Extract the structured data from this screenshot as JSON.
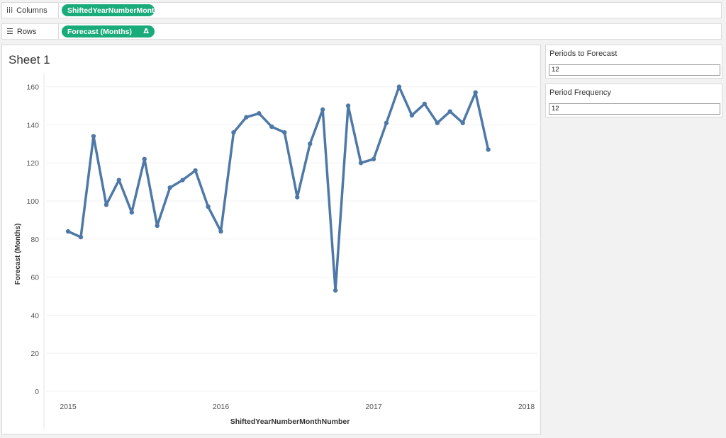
{
  "shelves": {
    "columns": {
      "label": "Columns",
      "icon": "iii",
      "pill": "ShiftedYearNumberMont..",
      "pill_color": "#1aab7a"
    },
    "rows": {
      "label": "Rows",
      "icon": "☰",
      "pill": "Forecast (Months)",
      "pill_icon": "Δ",
      "pill_color": "#1aab7a"
    }
  },
  "sheet": {
    "title": "Sheet 1"
  },
  "parameters": [
    {
      "title": "Periods to Forecast",
      "value": "12"
    },
    {
      "title": "Period Frequency",
      "value": "12"
    }
  ],
  "chart_data": {
    "type": "line",
    "xlabel": "ShiftedYearNumberMonthNumber",
    "ylabel": "Forecast (Months)",
    "ylim": [
      0,
      160
    ],
    "yticks": [
      0,
      20,
      40,
      60,
      80,
      100,
      120,
      140,
      160
    ],
    "xticks": [
      "2015",
      "2016",
      "2017",
      "2018"
    ],
    "xlim": [
      2015,
      2018
    ],
    "grid": true,
    "line_color": "#4e79a7",
    "series": [
      {
        "x": [
          2015.0,
          2015.0833,
          2015.1667,
          2015.25,
          2015.3333,
          2015.4167,
          2015.5,
          2015.5833,
          2015.6667,
          2015.75,
          2015.8333,
          2015.9167,
          2016.0,
          2016.0833,
          2016.1667,
          2016.25,
          2016.3333,
          2016.4167,
          2016.5,
          2016.5833,
          2016.6667,
          2016.75,
          2016.8333,
          2016.9167,
          2017.0,
          2017.0833,
          2017.1667,
          2017.25,
          2017.3333,
          2017.4167,
          2017.5,
          2017.5833,
          2017.6667,
          2017.75
        ],
        "values": [
          84,
          81,
          134,
          98,
          111,
          94,
          122,
          87,
          107,
          111,
          116,
          97,
          84,
          136,
          144,
          146,
          139,
          136,
          102,
          130,
          148,
          53,
          150,
          120,
          122,
          141,
          160,
          145,
          151,
          141,
          147,
          141,
          157,
          127
        ]
      }
    ]
  }
}
